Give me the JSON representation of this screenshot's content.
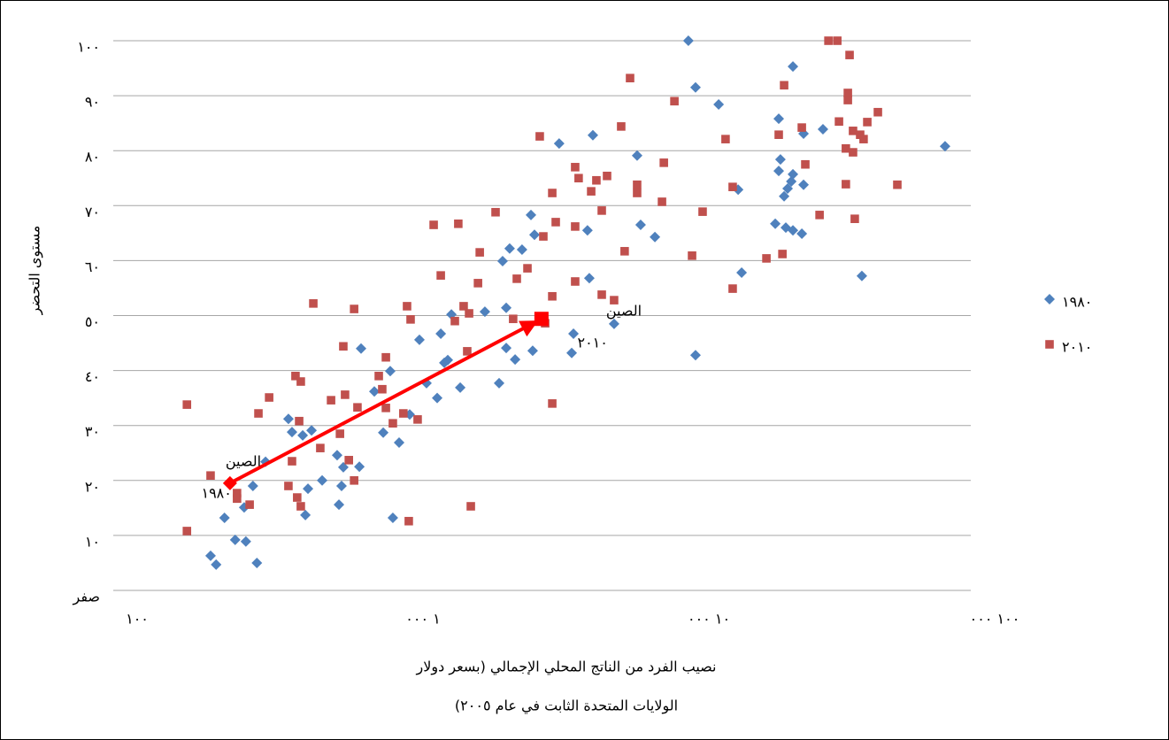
{
  "chart_data": {
    "type": "scatter",
    "x_label": [
      "نصيب الفرد من الناتج المحلي الإجمالي (بسعر دولار",
      "الولايات المتحدة الثابت في عام ٢٠٠٥)"
    ],
    "y_label": "مستوى التحضر",
    "xscale": "log",
    "xlim": [
      100,
      100000
    ],
    "xticks": [
      {
        "value": 100,
        "label": "١٠٠"
      },
      {
        "value": 1000,
        "label": "١ ٠٠٠"
      },
      {
        "value": 10000,
        "label": "١٠ ٠٠٠"
      },
      {
        "value": 100000,
        "label": "١٠٠ ٠٠٠"
      }
    ],
    "ylim": [
      0,
      100
    ],
    "yticks": [
      {
        "value": 0,
        "label": "صفر"
      },
      {
        "value": 10,
        "label": "١٠"
      },
      {
        "value": 20,
        "label": "٢٠"
      },
      {
        "value": 30,
        "label": "٣٠"
      },
      {
        "value": 40,
        "label": "٤٠"
      },
      {
        "value": 50,
        "label": "٥٠"
      },
      {
        "value": 60,
        "label": "٦٠"
      },
      {
        "value": 70,
        "label": "٧٠"
      },
      {
        "value": 80,
        "label": "٨٠"
      },
      {
        "value": 90,
        "label": "٩٠"
      },
      {
        "value": 100,
        "label": "١٠٠"
      }
    ],
    "grid": true,
    "legend": "right",
    "series": [
      {
        "name": "١٩٨٠",
        "color": "#4f81bd",
        "marker": "diamond",
        "x": [
          219,
          229,
          245,
          267,
          291,
          318,
          287,
          308,
          341,
          256,
          410,
          422,
          460,
          494,
          480,
          470,
          538,
          607,
          638,
          616,
          629,
          726,
          736,
          819,
          880,
          931,
          1000,
          951,
          1089,
          1178,
          1247,
          1359,
          1399,
          1439,
          1480,
          1524,
          1636,
          1996,
          2238,
          2302,
          2436,
          2692,
          2370,
          2370,
          2546,
          2933,
          2976,
          2893,
          3630,
          4763,
          4560,
          4629,
          4016,
          4074,
          5651,
          6803,
          6998,
          7852,
          10280,
          10890,
          13120,
          15350,
          15790,
          10890,
          21290,
          21580,
          21290,
          23870,
          23870,
          23550,
          22870,
          22230,
          26000,
          26000,
          30400,
          20700,
          22540,
          23870,
          25640,
          41590,
          81280
        ],
        "values": [
          6.3,
          4.7,
          13.2,
          9.2,
          8.9,
          5.0,
          15.1,
          19,
          23.4,
          19.5,
          31.2,
          28.8,
          28.2,
          29.1,
          18.5,
          13.7,
          20,
          24.6,
          22.4,
          15.6,
          19,
          22.5,
          44,
          36.2,
          28.7,
          39.9,
          26.9,
          13.2,
          32,
          45.6,
          37.7,
          35,
          46.7,
          41.4,
          41.9,
          50.2,
          36.9,
          50.7,
          37.7,
          59.9,
          62.2,
          62,
          51.4,
          44.1,
          42,
          43.6,
          64.7,
          68.3,
          81.3,
          82.8,
          65.5,
          56.8,
          43.2,
          46.7,
          48.5,
          79.1,
          66.5,
          64.3,
          100,
          91.5,
          88.4,
          72.9,
          57.8,
          42.8,
          85.8,
          78.4,
          76.3,
          95.3,
          75.7,
          74.4,
          73.1,
          71.7,
          73.8,
          83.1,
          83.9,
          66.7,
          66,
          65.5,
          64.9,
          57.2,
          80.8
        ]
      },
      {
        "name": "٢٠١٠",
        "color": "#c0504d",
        "marker": "square",
        "x": [
          181,
          181,
          219,
          271,
          271,
          300,
          322,
          351,
          410,
          422,
          440,
          453,
          434,
          453,
          447,
          501,
          530,
          578,
          621,
          638,
          647,
          667,
          696,
          696,
          715,
          849,
          873,
          899,
          899,
          951,
          1035,
          1066,
          1097,
          1081,
          1161,
          1321,
          1399,
          1611,
          1567,
          1682,
          1757,
          1731,
          1782,
          1888,
          1915,
          2175,
          2506,
          2581,
          2812,
          3105,
          3196,
          3243,
          3434,
          3434,
          3532,
          3434,
          4130,
          4247,
          4130,
          4130,
          4699,
          4900,
          5340,
          5117,
          5117,
          5651,
          5983,
          6152,
          6427,
          6803,
          6803,
          8312,
          8437,
          9187,
          10590,
          11530,
          13870,
          14690,
          14690,
          19280,
          21290,
          21930,
          22230,
          25640,
          26370,
          29580,
          31770,
          34120,
          34590,
          36560,
          36560,
          37150,
          37150,
          37670,
          38730,
          38730,
          39280,
          41020,
          42170,
          43450,
          47320,
          55340
        ],
        "values": [
          33.8,
          10.8,
          20.9,
          17.7,
          16.7,
          15.6,
          32.2,
          35.1,
          19,
          23.5,
          16.9,
          15.3,
          39,
          38,
          30.8,
          52.2,
          25.9,
          34.6,
          28.5,
          44.4,
          35.6,
          23.7,
          20,
          51.2,
          33.3,
          39,
          36.6,
          33.2,
          42.4,
          30.4,
          32.2,
          51.7,
          49.3,
          12.6,
          31.1,
          66.5,
          57.3,
          66.7,
          49,
          51.7,
          50.4,
          43.5,
          15.3,
          55.9,
          61.5,
          68.8,
          49.4,
          56.7,
          58.6,
          82.6,
          64.4,
          48.6,
          72.3,
          34,
          67,
          53.5,
          77,
          75,
          66.2,
          56.2,
          72.6,
          74.6,
          75.4,
          69.1,
          53.8,
          52.8,
          84.4,
          61.7,
          93.2,
          72.3,
          73.8,
          70.7,
          77.8,
          89,
          60.9,
          68.9,
          82.1,
          73.4,
          54.9,
          60.4,
          82.9,
          61.2,
          91.9,
          84.2,
          77.5,
          68.3,
          100,
          100,
          85.3,
          80.4,
          73.9,
          89.2,
          90.5,
          97.4,
          83.6,
          79.7,
          67.6,
          82.9,
          82.1,
          85.2,
          87,
          73.8
        ]
      }
    ],
    "annotations": [
      {
        "label": "الصين",
        "year": "١٩٨٠",
        "x": 256,
        "y": 19.5
      },
      {
        "label": "الصين",
        "year": "٢٠١٠",
        "x": 3148,
        "y": 49.4
      }
    ],
    "arrow_color": "#ff0000"
  }
}
